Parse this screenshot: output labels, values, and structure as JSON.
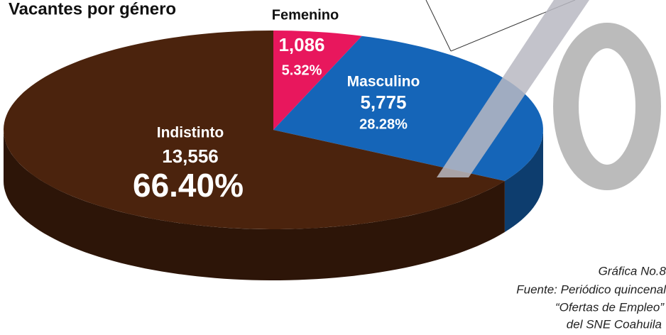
{
  "chart_data": {
    "type": "pie",
    "title": "Vacantes por género",
    "categories": [
      "Femenino",
      "Masculino",
      "Indistinto"
    ],
    "values": [
      5.32,
      28.28,
      66.4
    ],
    "value_labels": [
      "5.32%",
      "28.28%",
      "66.40%"
    ],
    "counts": [
      1086,
      5775,
      13556
    ],
    "count_labels": [
      "1,086",
      "5,775",
      "13,556"
    ],
    "colors": [
      "#e8175d",
      "#1565b8",
      "#4b230d"
    ],
    "footnote": [
      "Gráfica No.8",
      "Fuente: Periódico quincenal",
      "“Ofertas de Empleo”",
      "del SNE Coahuila"
    ]
  }
}
